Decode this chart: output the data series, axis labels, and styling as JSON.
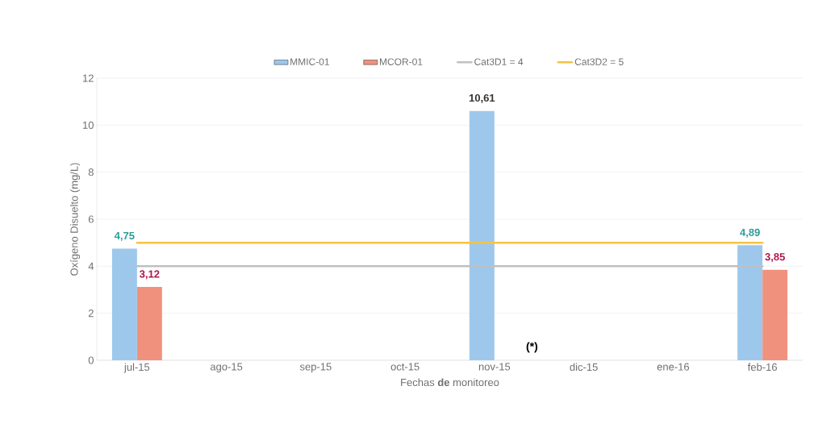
{
  "chart_data": {
    "type": "bar",
    "xlabel": "Fechas **de** monitoreo",
    "ylabel": "Oxígeno Disuelto (mg/L)",
    "categories": [
      "jul-15",
      "ago-15",
      "sep-15",
      "oct-15",
      "nov-15",
      "dic-15",
      "ene-16",
      "feb-16"
    ],
    "series": [
      {
        "name": "MMIC-01",
        "color": "#9dc8ec",
        "values": [
          4.75,
          null,
          null,
          null,
          10.61,
          null,
          null,
          4.89
        ],
        "value_labels": [
          "4,75",
          null,
          null,
          null,
          "10,61",
          null,
          null,
          "4,89"
        ]
      },
      {
        "name": "MCOR-01",
        "color": "#f0917e",
        "values": [
          3.12,
          null,
          null,
          null,
          null,
          null,
          null,
          3.85
        ],
        "value_labels": [
          "3,12",
          null,
          null,
          null,
          null,
          null,
          null,
          "3,85"
        ]
      },
      {
        "name": "Cat3D1 = 4",
        "type": "line",
        "color": "#c0c0c0",
        "values": [
          4,
          4,
          4,
          4,
          4,
          4,
          4,
          4
        ]
      },
      {
        "name": "Cat3D2 = 5",
        "type": "line",
        "color": "#f5c342",
        "values": [
          5,
          5,
          5,
          5,
          5,
          5,
          5,
          5
        ]
      }
    ],
    "annotations": [
      {
        "text": "(*)",
        "x": "nov-15",
        "y": 0
      }
    ],
    "ylim": [
      0,
      12
    ],
    "yticks": [
      0,
      2,
      4,
      6,
      8,
      10,
      12
    ],
    "grid": "y",
    "legend": "top"
  }
}
